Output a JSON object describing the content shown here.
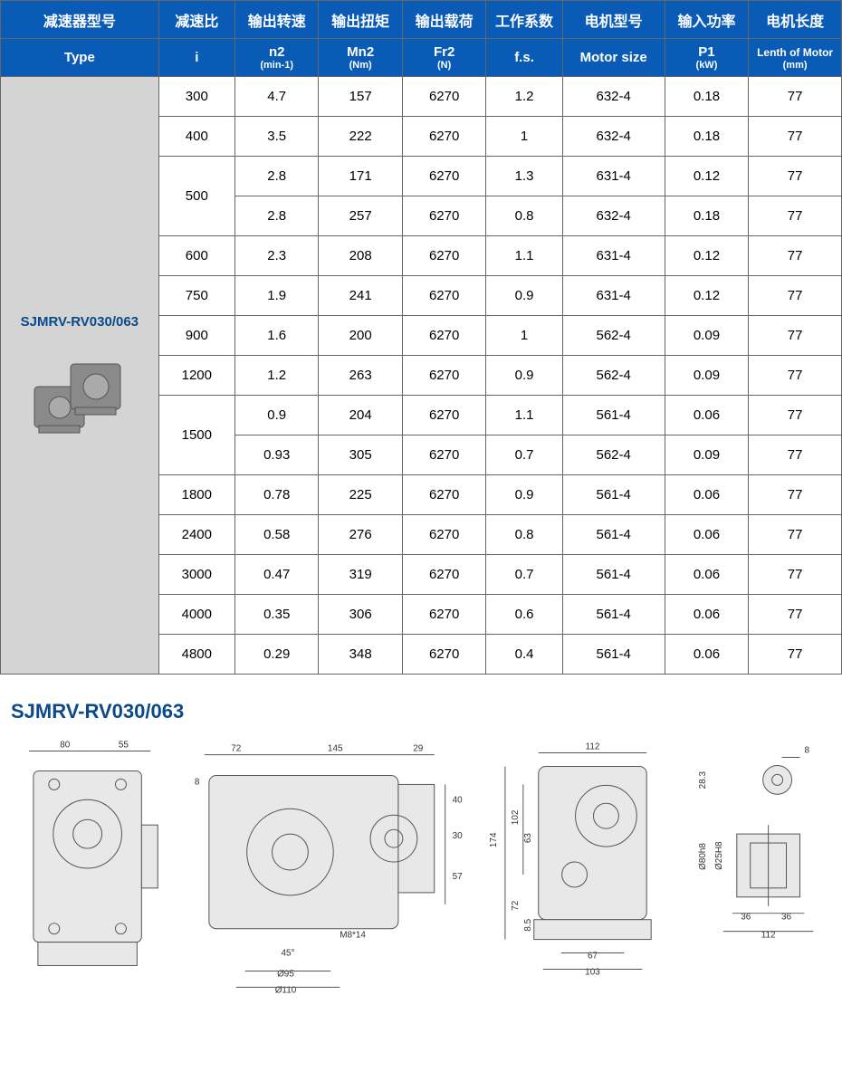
{
  "table": {
    "header_cn": [
      "减速器型号",
      "减速比",
      "输出转速",
      "输出扭矩",
      "输出载荷",
      "工作系数",
      "电机型号",
      "输入功率",
      "电机长度"
    ],
    "header_en": [
      {
        "main": "Type",
        "sub": ""
      },
      {
        "main": "i",
        "sub": ""
      },
      {
        "main": "n2",
        "sub": "(min-1)"
      },
      {
        "main": "Mn2",
        "sub": "(Nm)"
      },
      {
        "main": "Fr2",
        "sub": "(N)"
      },
      {
        "main": "f.s.",
        "sub": ""
      },
      {
        "main": "Motor size",
        "sub": ""
      },
      {
        "main": "P1",
        "sub": "(kW)"
      },
      {
        "main": "Lenth of Motor",
        "sub": "(mm)"
      }
    ],
    "type_label": "SJMRV-RV030/063",
    "rows": [
      {
        "i": "300",
        "n2": "4.7",
        "mn2": "157",
        "fr2": "6270",
        "fs": "1.2",
        "motor": "632-4",
        "p1": "0.18",
        "len": "77"
      },
      {
        "i": "400",
        "n2": "3.5",
        "mn2": "222",
        "fr2": "6270",
        "fs": "1",
        "motor": "632-4",
        "p1": "0.18",
        "len": "77"
      },
      {
        "i": "500",
        "rowspan": 2,
        "n2": "2.8",
        "mn2": "171",
        "fr2": "6270",
        "fs": "1.3",
        "motor": "631-4",
        "p1": "0.12",
        "len": "77"
      },
      {
        "i": null,
        "n2": "2.8",
        "mn2": "257",
        "fr2": "6270",
        "fs": "0.8",
        "motor": "632-4",
        "p1": "0.18",
        "len": "77"
      },
      {
        "i": "600",
        "n2": "2.3",
        "mn2": "208",
        "fr2": "6270",
        "fs": "1.1",
        "motor": "631-4",
        "p1": "0.12",
        "len": "77"
      },
      {
        "i": "750",
        "n2": "1.9",
        "mn2": "241",
        "fr2": "6270",
        "fs": "0.9",
        "motor": "631-4",
        "p1": "0.12",
        "len": "77"
      },
      {
        "i": "900",
        "n2": "1.6",
        "mn2": "200",
        "fr2": "6270",
        "fs": "1",
        "motor": "562-4",
        "p1": "0.09",
        "len": "77"
      },
      {
        "i": "1200",
        "n2": "1.2",
        "mn2": "263",
        "fr2": "6270",
        "fs": "0.9",
        "motor": "562-4",
        "p1": "0.09",
        "len": "77"
      },
      {
        "i": "1500",
        "rowspan": 2,
        "n2": "0.9",
        "mn2": "204",
        "fr2": "6270",
        "fs": "1.1",
        "motor": "561-4",
        "p1": "0.06",
        "len": "77"
      },
      {
        "i": null,
        "n2": "0.93",
        "mn2": "305",
        "fr2": "6270",
        "fs": "0.7",
        "motor": "562-4",
        "p1": "0.09",
        "len": "77"
      },
      {
        "i": "1800",
        "n2": "0.78",
        "mn2": "225",
        "fr2": "6270",
        "fs": "0.9",
        "motor": "561-4",
        "p1": "0.06",
        "len": "77"
      },
      {
        "i": "2400",
        "n2": "0.58",
        "mn2": "276",
        "fr2": "6270",
        "fs": "0.8",
        "motor": "561-4",
        "p1": "0.06",
        "len": "77"
      },
      {
        "i": "3000",
        "n2": "0.47",
        "mn2": "319",
        "fr2": "6270",
        "fs": "0.7",
        "motor": "561-4",
        "p1": "0.06",
        "len": "77"
      },
      {
        "i": "4000",
        "n2": "0.35",
        "mn2": "306",
        "fr2": "6270",
        "fs": "0.6",
        "motor": "561-4",
        "p1": "0.06",
        "len": "77"
      },
      {
        "i": "4800",
        "n2": "0.29",
        "mn2": "348",
        "fr2": "6270",
        "fs": "0.4",
        "motor": "561-4",
        "p1": "0.06",
        "len": "77"
      }
    ],
    "colors": {
      "header_bg": "#0a5bb5",
      "header_fg": "#ffffff",
      "type_bg": "#d4d4d4",
      "border": "#666666"
    }
  },
  "section_title": "SJMRV-RV030/063",
  "drawings": {
    "view1": {
      "dims": {
        "w80": "80",
        "w55": "55"
      }
    },
    "view2": {
      "dims": {
        "w72": "72",
        "w145": "145",
        "w29": "29",
        "h8": "8",
        "h40": "40",
        "h30": "30",
        "h57": "57",
        "note": "M8*14",
        "ang": "45°",
        "d95": "Ø95",
        "d110": "Ø110"
      }
    },
    "view3": {
      "dims": {
        "w112": "112",
        "h174": "174",
        "h102": "102",
        "h63": "63",
        "h72": "72",
        "h85": "8.5",
        "w67": "67",
        "w103": "103"
      }
    },
    "view4": {
      "dims": {
        "h8": "8",
        "h283": "28.3",
        "d80": "Ø80h8",
        "d25": "Ø25H8",
        "w36a": "36",
        "w36b": "36",
        "w112": "112"
      }
    }
  }
}
